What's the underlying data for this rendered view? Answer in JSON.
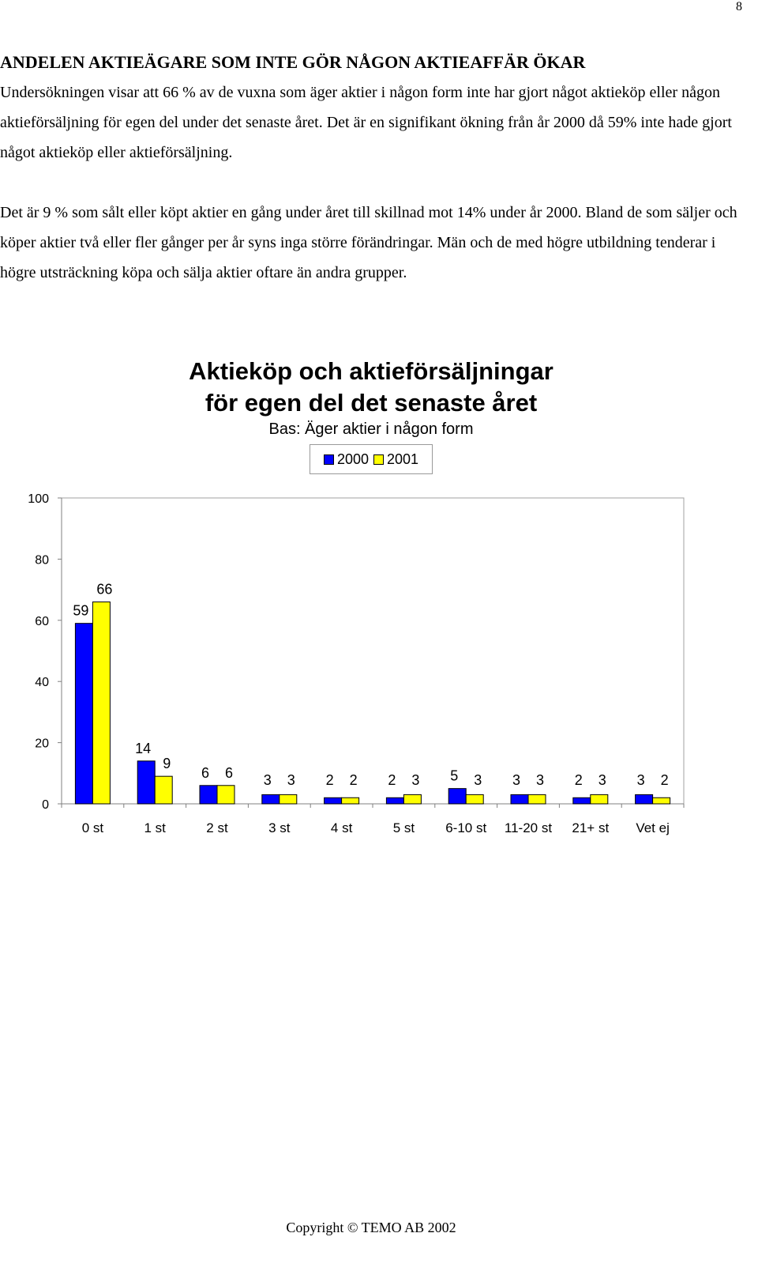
{
  "page": {
    "number": "8",
    "copyright": "Copyright © TEMO AB 2002"
  },
  "article": {
    "heading": "ANDELEN AKTIEÄGARE SOM INTE GÖR NÅGON AKTIEAFFÄR ÖKAR",
    "paragraphs": [
      "Undersökningen visar att 66 % av de vuxna som äger aktier i någon form inte har gjort något aktieköp eller någon aktieförsäljning för egen del under det senaste året. Det är en signifikant ökning från år 2000 då 59% inte hade gjort något aktieköp eller aktieförsäljning.",
      "Det är 9 % som sålt eller köpt aktier en gång under året till skillnad mot 14% under år 2000. Bland de som säljer och köper aktier två eller fler gånger per år syns inga större förändringar. Män och de med högre utbildning tenderar i högre utsträckning köpa och sälja aktier oftare än andra grupper."
    ]
  },
  "chart_data": {
    "type": "bar",
    "title_lines": [
      "Aktieköp och aktieförsäljningar",
      "för egen del det senaste året"
    ],
    "subtitle": "Bas: Äger aktier i någon form",
    "categories": [
      "0 st",
      "1 st",
      "2 st",
      "3 st",
      "4 st",
      "5 st",
      "6-10 st",
      "11-20 st",
      "21+ st",
      "Vet ej"
    ],
    "series": [
      {
        "name": "2000",
        "values": [
          59,
          14,
          6,
          3,
          2,
          2,
          5,
          3,
          2,
          3
        ],
        "color": "#0000ff"
      },
      {
        "name": "2001",
        "values": [
          66,
          9,
          6,
          3,
          2,
          3,
          3,
          3,
          3,
          2
        ],
        "color": "#ffff00"
      }
    ],
    "ylim": [
      0,
      100
    ],
    "yticks": [
      0,
      20,
      40,
      60,
      80,
      100
    ],
    "legend_position": "top-center",
    "grid": false
  }
}
